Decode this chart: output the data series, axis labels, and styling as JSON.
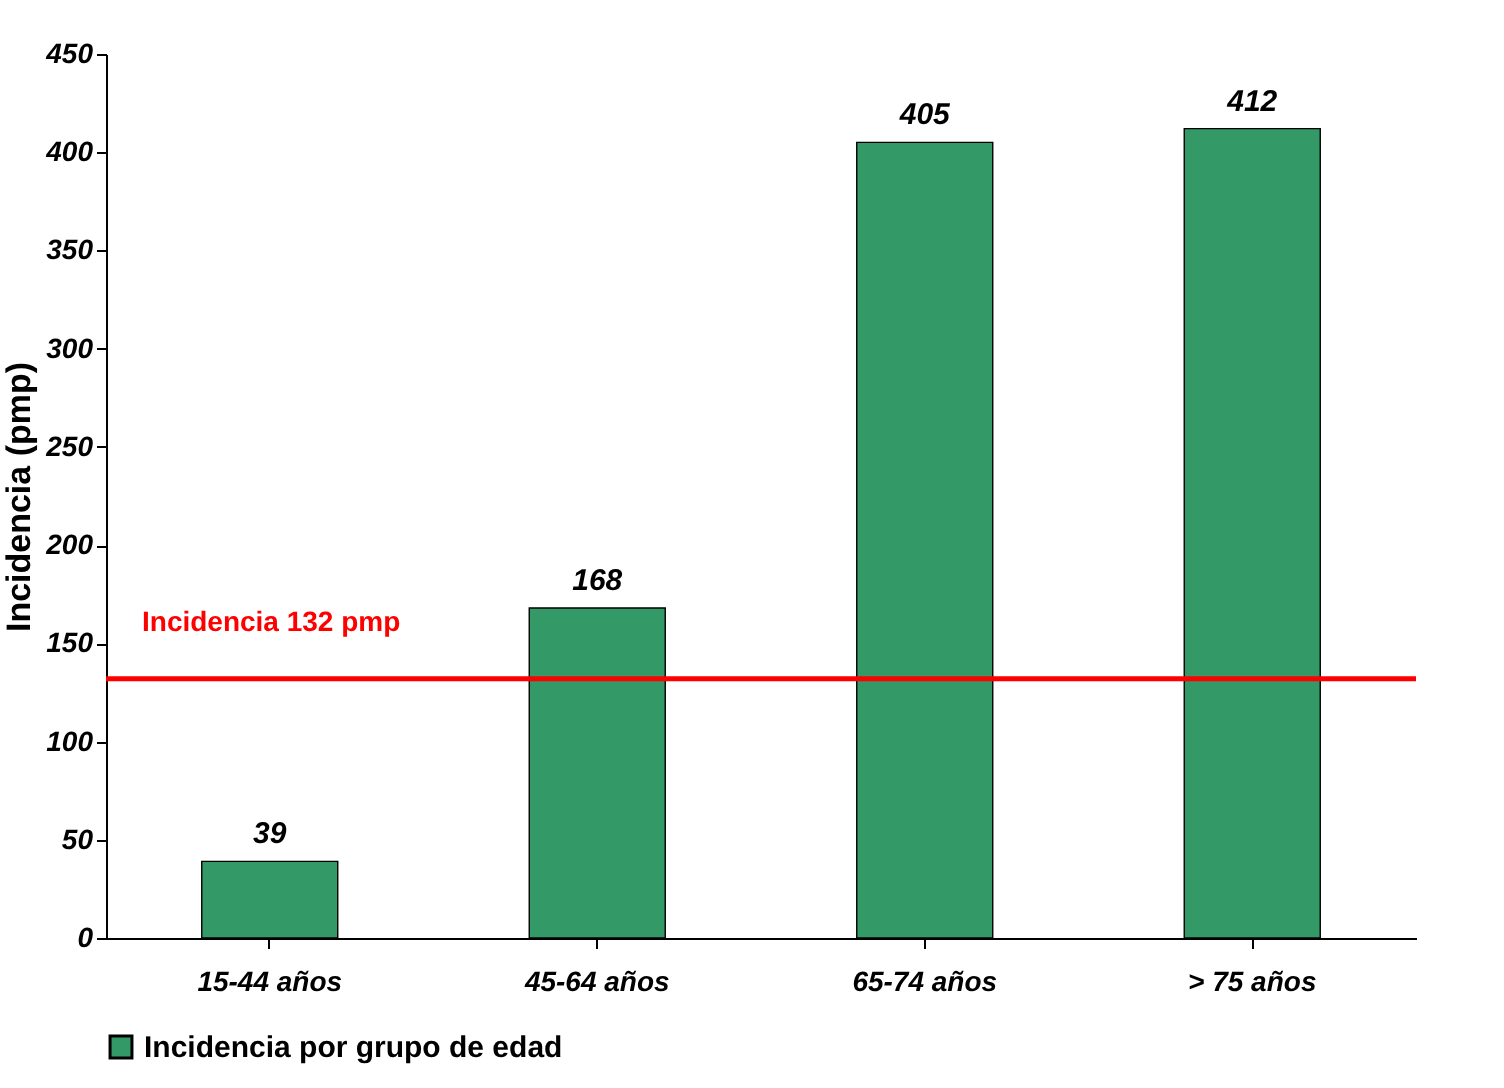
{
  "chart_data": {
    "type": "bar",
    "ylabel": "Incidencia (pmp)",
    "categories": [
      "15-44 años",
      "45-64 años",
      "65-74 años",
      "> 75 años"
    ],
    "series": [
      {
        "name": "Incidencia por grupo de edad",
        "color": "#339966",
        "values": [
          39,
          168,
          405,
          412
        ]
      }
    ],
    "ylim": [
      0,
      450
    ],
    "yticks": [
      0,
      50,
      100,
      150,
      200,
      250,
      300,
      350,
      400,
      450
    ],
    "ref_lines": [
      {
        "axis": "y",
        "value": 132,
        "label": "Incidencia 132 pmp",
        "color": "#ff0000"
      }
    ],
    "data_labels": true,
    "legend": "bottom",
    "grid": false
  }
}
